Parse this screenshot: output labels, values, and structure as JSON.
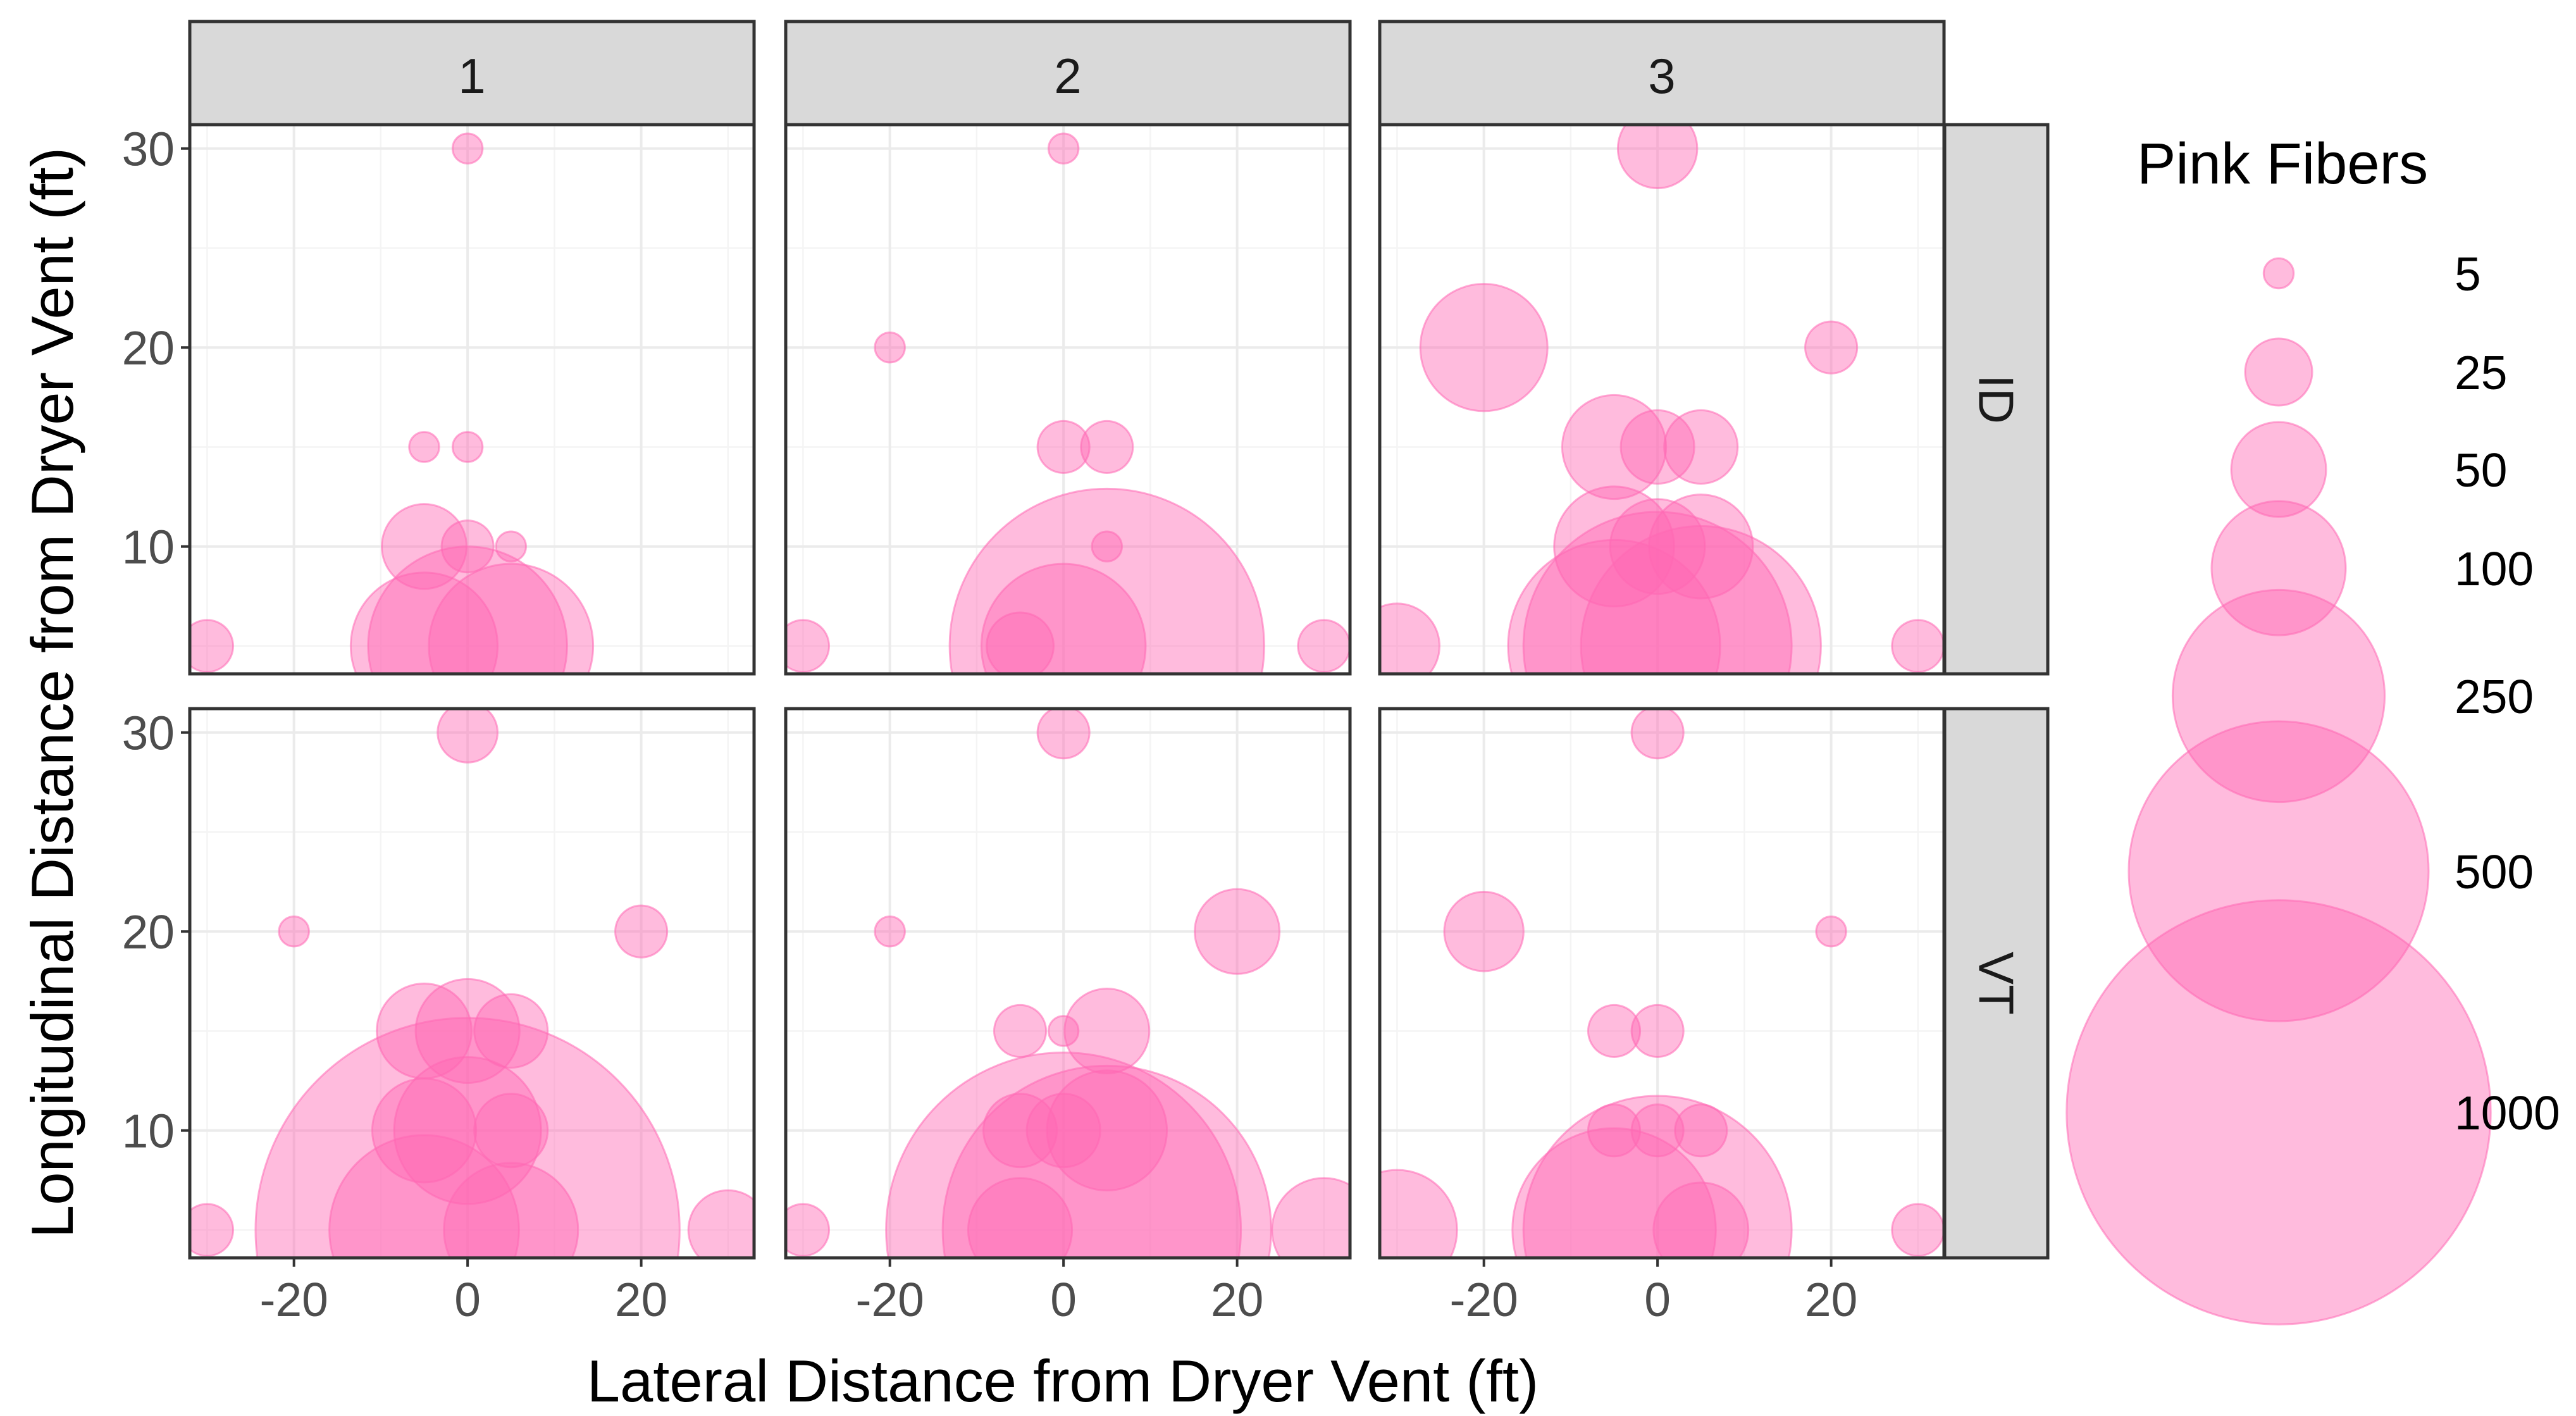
{
  "chart_data": {
    "type": "scatter",
    "subtype": "faceted bubble chart",
    "xlabel": "Lateral Distance from Dryer Vent (ft)",
    "ylabel": "Longitudinal Distance from Dryer Vent (ft)",
    "facet_cols": [
      "1",
      "2",
      "3"
    ],
    "facet_rows": [
      "ID",
      "VT"
    ],
    "x_ticks": [
      -20,
      0,
      20
    ],
    "y_ticks": [
      10,
      20,
      30
    ],
    "xlim": [
      -32,
      33
    ],
    "ylim": [
      3.6,
      31.2
    ],
    "grid": true,
    "point_color": "#ff69b4",
    "point_opacity": 0.45,
    "legend": {
      "title": "Pink Fibers",
      "position": "right",
      "sizes": [
        5,
        25,
        50,
        100,
        250,
        500,
        1000
      ]
    },
    "panels": [
      {
        "col": "1",
        "row": "ID",
        "points": [
          {
            "x": 0,
            "y": 30,
            "size": 5
          },
          {
            "x": -5,
            "y": 15,
            "size": 5
          },
          {
            "x": 0,
            "y": 15,
            "size": 5
          },
          {
            "x": -5,
            "y": 10,
            "size": 40
          },
          {
            "x": 0,
            "y": 10,
            "size": 15
          },
          {
            "x": 5,
            "y": 10,
            "size": 5
          },
          {
            "x": -30,
            "y": 5,
            "size": 15
          },
          {
            "x": -5,
            "y": 5,
            "size": 120
          },
          {
            "x": 0,
            "y": 5,
            "size": 220
          },
          {
            "x": 5,
            "y": 5,
            "size": 150
          }
        ]
      },
      {
        "col": "2",
        "row": "ID",
        "points": [
          {
            "x": 0,
            "y": 30,
            "size": 5
          },
          {
            "x": -20,
            "y": 20,
            "size": 5
          },
          {
            "x": 0,
            "y": 15,
            "size": 15
          },
          {
            "x": 5,
            "y": 15,
            "size": 15
          },
          {
            "x": 5,
            "y": 10,
            "size": 5
          },
          {
            "x": -30,
            "y": 5,
            "size": 15
          },
          {
            "x": -5,
            "y": 5,
            "size": 25
          },
          {
            "x": 0,
            "y": 5,
            "size": 150
          },
          {
            "x": 5,
            "y": 5,
            "size": 550
          },
          {
            "x": 30,
            "y": 5,
            "size": 15
          }
        ]
      },
      {
        "col": "3",
        "row": "ID",
        "points": [
          {
            "x": 0,
            "y": 30,
            "size": 35
          },
          {
            "x": -20,
            "y": 20,
            "size": 90
          },
          {
            "x": 20,
            "y": 20,
            "size": 15
          },
          {
            "x": -5,
            "y": 15,
            "size": 60
          },
          {
            "x": 0,
            "y": 15,
            "size": 30
          },
          {
            "x": 5,
            "y": 15,
            "size": 30
          },
          {
            "x": -5,
            "y": 10,
            "size": 80
          },
          {
            "x": 0,
            "y": 10,
            "size": 50
          },
          {
            "x": 5,
            "y": 10,
            "size": 60
          },
          {
            "x": -30,
            "y": 5,
            "size": 40
          },
          {
            "x": -5,
            "y": 5,
            "size": 250
          },
          {
            "x": 0,
            "y": 5,
            "size": 400
          },
          {
            "x": 5,
            "y": 5,
            "size": 320
          },
          {
            "x": 30,
            "y": 5,
            "size": 15
          }
        ]
      },
      {
        "col": "1",
        "row": "VT",
        "points": [
          {
            "x": 0,
            "y": 30,
            "size": 20
          },
          {
            "x": -20,
            "y": 20,
            "size": 5
          },
          {
            "x": 20,
            "y": 20,
            "size": 15
          },
          {
            "x": -5,
            "y": 15,
            "size": 50
          },
          {
            "x": 0,
            "y": 15,
            "size": 60
          },
          {
            "x": 5,
            "y": 15,
            "size": 30
          },
          {
            "x": -5,
            "y": 10,
            "size": 60
          },
          {
            "x": 0,
            "y": 10,
            "size": 120
          },
          {
            "x": 5,
            "y": 10,
            "size": 30
          },
          {
            "x": -30,
            "y": 5,
            "size": 15
          },
          {
            "x": -5,
            "y": 5,
            "size": 200
          },
          {
            "x": 0,
            "y": 5,
            "size": 1000
          },
          {
            "x": 5,
            "y": 5,
            "size": 100
          },
          {
            "x": 30,
            "y": 5,
            "size": 35
          }
        ]
      },
      {
        "col": "2",
        "row": "VT",
        "points": [
          {
            "x": 0,
            "y": 30,
            "size": 15
          },
          {
            "x": -20,
            "y": 20,
            "size": 5
          },
          {
            "x": 20,
            "y": 20,
            "size": 40
          },
          {
            "x": -5,
            "y": 15,
            "size": 15
          },
          {
            "x": 0,
            "y": 15,
            "size": 5
          },
          {
            "x": 5,
            "y": 15,
            "size": 40
          },
          {
            "x": -5,
            "y": 10,
            "size": 30
          },
          {
            "x": 0,
            "y": 10,
            "size": 30
          },
          {
            "x": 5,
            "y": 10,
            "size": 80
          },
          {
            "x": -30,
            "y": 5,
            "size": 15
          },
          {
            "x": -5,
            "y": 5,
            "size": 60
          },
          {
            "x": 0,
            "y": 5,
            "size": 700
          },
          {
            "x": 5,
            "y": 5,
            "size": 600
          },
          {
            "x": 30,
            "y": 5,
            "size": 60
          }
        ]
      },
      {
        "col": "3",
        "row": "VT",
        "points": [
          {
            "x": 0,
            "y": 30,
            "size": 15
          },
          {
            "x": -20,
            "y": 20,
            "size": 35
          },
          {
            "x": 20,
            "y": 20,
            "size": 5
          },
          {
            "x": -5,
            "y": 15,
            "size": 15
          },
          {
            "x": 0,
            "y": 15,
            "size": 15
          },
          {
            "x": -5,
            "y": 10,
            "size": 15
          },
          {
            "x": 0,
            "y": 10,
            "size": 15
          },
          {
            "x": 5,
            "y": 10,
            "size": 15
          },
          {
            "x": -30,
            "y": 5,
            "size": 80
          },
          {
            "x": -5,
            "y": 5,
            "size": 230
          },
          {
            "x": 0,
            "y": 5,
            "size": 400
          },
          {
            "x": 5,
            "y": 5,
            "size": 50
          },
          {
            "x": 30,
            "y": 5,
            "size": 15
          }
        ]
      }
    ]
  }
}
